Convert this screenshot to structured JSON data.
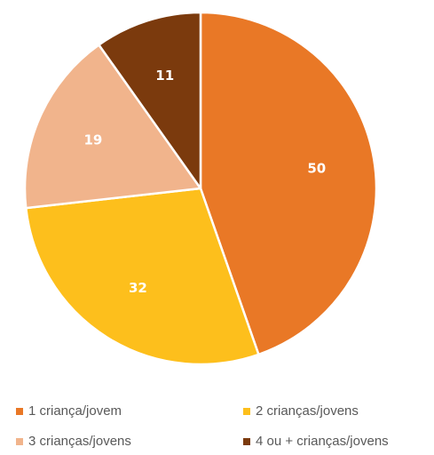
{
  "chart_data": {
    "type": "pie",
    "categories": [
      "1 criança/jovem",
      "2 crianças/jovens",
      "3 crianças/jovens",
      "4 ou + crianças/jovens"
    ],
    "values": [
      50,
      32,
      19,
      11
    ],
    "colors": [
      "#E97826",
      "#FDBF1C",
      "#F1B48C",
      "#7B3A0D"
    ],
    "data_labels": [
      "50",
      "32",
      "19",
      "11"
    ],
    "start": "12 o'clock",
    "direction": "clockwise",
    "legend": "bottom"
  }
}
